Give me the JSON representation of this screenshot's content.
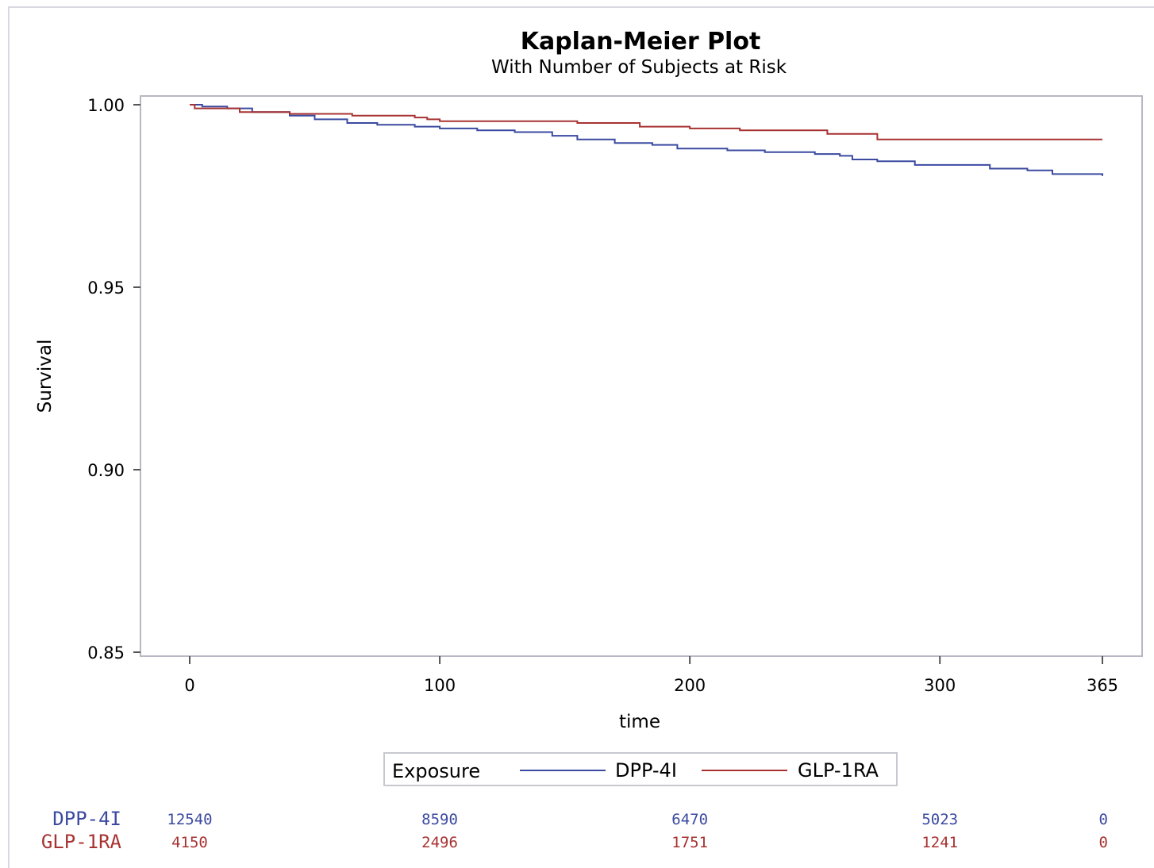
{
  "chart_data": {
    "type": "line",
    "title": "Kaplan-Meier Plot",
    "subtitle": "With Number of Subjects at Risk",
    "xlabel": "time",
    "ylabel": "Survival",
    "xlim": [
      0,
      365
    ],
    "ylim": [
      0.85,
      1.0
    ],
    "xticks": [
      0,
      100,
      200,
      300,
      365
    ],
    "xtick_labels": [
      "0",
      "100",
      "200",
      "300",
      "365"
    ],
    "yticks": [
      0.85,
      0.9,
      0.95,
      1.0
    ],
    "ytick_labels": [
      "0.85",
      "0.90",
      "0.95",
      "1.00"
    ],
    "grid": false,
    "legend": {
      "title": "Exposure",
      "position": "bottom"
    },
    "series": [
      {
        "name": "DPP-4I",
        "color": "#3b4aa0",
        "x": [
          0,
          5,
          15,
          25,
          40,
          50,
          63,
          75,
          90,
          100,
          115,
          130,
          145,
          155,
          170,
          185,
          195,
          215,
          230,
          250,
          260,
          265,
          275,
          290,
          320,
          335,
          345,
          365
        ],
        "y": [
          1.0,
          0.9995,
          0.999,
          0.998,
          0.997,
          0.996,
          0.995,
          0.9945,
          0.994,
          0.9935,
          0.993,
          0.9925,
          0.9915,
          0.9905,
          0.9895,
          0.989,
          0.988,
          0.9875,
          0.987,
          0.9865,
          0.986,
          0.985,
          0.9845,
          0.9835,
          0.9825,
          0.982,
          0.981,
          0.9805
        ]
      },
      {
        "name": "GLP-1RA",
        "color": "#a83232",
        "x": [
          0,
          2,
          20,
          40,
          65,
          90,
          95,
          100,
          155,
          180,
          200,
          220,
          255,
          275,
          365
        ],
        "y": [
          1.0,
          0.999,
          0.998,
          0.9975,
          0.997,
          0.9965,
          0.996,
          0.9955,
          0.995,
          0.994,
          0.9935,
          0.993,
          0.992,
          0.9905,
          0.9905
        ]
      }
    ],
    "at_risk": {
      "times": [
        0,
        100,
        200,
        300,
        365
      ],
      "rows": [
        {
          "label": "DPP-4I",
          "color": "#3b4aa0",
          "values": [
            "12540",
            "8590",
            "6470",
            "5023",
            "0"
          ]
        },
        {
          "label": "GLP-1RA",
          "color": "#a83232",
          "values": [
            "4150",
            "2496",
            "1751",
            "1241",
            "0"
          ]
        }
      ]
    }
  }
}
